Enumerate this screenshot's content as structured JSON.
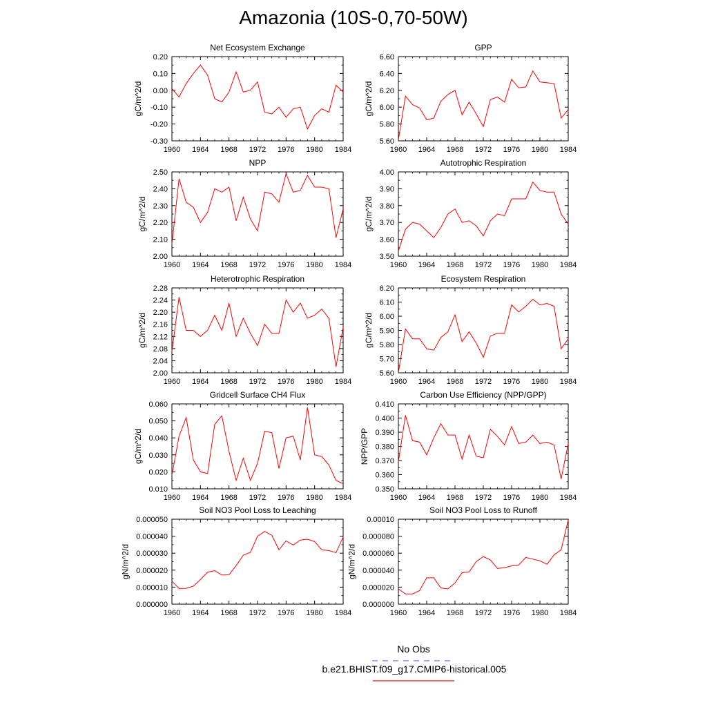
{
  "title": "Amazonia (10S-0,70-50W)",
  "legend": {
    "obs_label": "No Obs",
    "obs_color": "#6b6bd6",
    "run_label": "b.e21.BHIST.f09_g17.CMIP6-historical.005",
    "run_color": "#ff0000"
  },
  "line_color": "#ff0000",
  "chart_data": [
    {
      "type": "line",
      "title": "Net Ecosystem Exchange",
      "ylabel": "gC/m^2/d",
      "ylim": [
        -0.3,
        0.2
      ],
      "yticks": [
        "-0.30",
        "-0.20",
        "-0.10",
        "0.00",
        "0.10",
        "0.20"
      ],
      "xlim": [
        1960,
        1984
      ],
      "xticks": [
        "1960",
        "1964",
        "1968",
        "1972",
        "1976",
        "1980",
        "1984"
      ],
      "x": [
        1960,
        1961,
        1962,
        1963,
        1964,
        1965,
        1966,
        1967,
        1968,
        1969,
        1970,
        1971,
        1972,
        1973,
        1974,
        1975,
        1976,
        1977,
        1978,
        1979,
        1980,
        1981,
        1982,
        1983,
        1984
      ],
      "values": [
        0.01,
        -0.04,
        0.04,
        0.1,
        0.15,
        0.09,
        -0.05,
        -0.07,
        -0.01,
        0.11,
        -0.01,
        0.0,
        0.05,
        -0.13,
        -0.14,
        -0.1,
        -0.16,
        -0.11,
        -0.1,
        -0.23,
        -0.15,
        -0.11,
        -0.13,
        0.03,
        -0.01
      ]
    },
    {
      "type": "line",
      "title": "GPP",
      "ylabel": "gC/m^2/d",
      "ylim": [
        5.6,
        6.6
      ],
      "yticks": [
        "5.60",
        "5.80",
        "6.00",
        "6.20",
        "6.40",
        "6.60"
      ],
      "xlim": [
        1960,
        1984
      ],
      "xticks": [
        "1960",
        "1964",
        "1968",
        "1972",
        "1976",
        "1980",
        "1984"
      ],
      "x": [
        1960,
        1961,
        1962,
        1963,
        1964,
        1965,
        1966,
        1967,
        1968,
        1969,
        1970,
        1971,
        1972,
        1973,
        1974,
        1975,
        1976,
        1977,
        1978,
        1979,
        1980,
        1981,
        1982,
        1983,
        1984
      ],
      "values": [
        5.61,
        6.13,
        6.03,
        5.99,
        5.85,
        5.87,
        6.07,
        6.15,
        6.2,
        5.91,
        6.06,
        5.92,
        5.77,
        6.09,
        6.12,
        6.06,
        6.33,
        6.23,
        6.24,
        6.43,
        6.3,
        6.29,
        6.28,
        5.87,
        5.97
      ]
    },
    {
      "type": "line",
      "title": "NPP",
      "ylabel": "gC/m^2/d",
      "ylim": [
        2.0,
        2.5
      ],
      "yticks": [
        "2.00",
        "2.10",
        "2.20",
        "2.30",
        "2.40",
        "2.50"
      ],
      "xlim": [
        1960,
        1984
      ],
      "xticks": [
        "1960",
        "1964",
        "1968",
        "1972",
        "1976",
        "1980",
        "1984"
      ],
      "x": [
        1960,
        1961,
        1962,
        1963,
        1964,
        1965,
        1966,
        1967,
        1968,
        1969,
        1970,
        1971,
        1972,
        1973,
        1974,
        1975,
        1976,
        1977,
        1978,
        1979,
        1980,
        1981,
        1982,
        1983,
        1984
      ],
      "values": [
        2.07,
        2.46,
        2.32,
        2.29,
        2.2,
        2.26,
        2.4,
        2.38,
        2.41,
        2.21,
        2.35,
        2.22,
        2.15,
        2.38,
        2.37,
        2.32,
        2.49,
        2.38,
        2.39,
        2.48,
        2.41,
        2.41,
        2.4,
        2.11,
        2.28
      ]
    },
    {
      "type": "line",
      "title": "Autotrophic Respiration",
      "ylabel": "gC/m^2/d",
      "ylim": [
        3.5,
        4.0
      ],
      "yticks": [
        "3.50",
        "3.60",
        "3.70",
        "3.80",
        "3.90",
        "4.00"
      ],
      "xlim": [
        1960,
        1984
      ],
      "xticks": [
        "1960",
        "1964",
        "1968",
        "1972",
        "1976",
        "1980",
        "1984"
      ],
      "x": [
        1960,
        1961,
        1962,
        1963,
        1964,
        1965,
        1966,
        1967,
        1968,
        1969,
        1970,
        1971,
        1972,
        1973,
        1974,
        1975,
        1976,
        1977,
        1978,
        1979,
        1980,
        1981,
        1982,
        1983,
        1984
      ],
      "values": [
        3.53,
        3.66,
        3.7,
        3.69,
        3.65,
        3.61,
        3.67,
        3.75,
        3.78,
        3.7,
        3.71,
        3.68,
        3.62,
        3.71,
        3.75,
        3.74,
        3.84,
        3.84,
        3.84,
        3.94,
        3.89,
        3.88,
        3.88,
        3.75,
        3.69
      ]
    },
    {
      "type": "line",
      "title": "Heterotrophic Respiration",
      "ylabel": "gC/m^2/d",
      "ylim": [
        2.0,
        2.28
      ],
      "yticks": [
        "2.00",
        "2.04",
        "2.08",
        "2.12",
        "2.16",
        "2.20",
        "2.24",
        "2.28"
      ],
      "xlim": [
        1960,
        1984
      ],
      "xticks": [
        "1960",
        "1964",
        "1968",
        "1972",
        "1976",
        "1980",
        "1984"
      ],
      "x": [
        1960,
        1961,
        1962,
        1963,
        1964,
        1965,
        1966,
        1967,
        1968,
        1969,
        1970,
        1971,
        1972,
        1973,
        1974,
        1975,
        1976,
        1977,
        1978,
        1979,
        1980,
        1981,
        1982,
        1983,
        1984
      ],
      "values": [
        2.07,
        2.25,
        2.14,
        2.14,
        2.12,
        2.14,
        2.19,
        2.14,
        2.23,
        2.12,
        2.18,
        2.13,
        2.09,
        2.16,
        2.13,
        2.13,
        2.24,
        2.2,
        2.23,
        2.18,
        2.19,
        2.21,
        2.18,
        2.02,
        2.15
      ]
    },
    {
      "type": "line",
      "title": "Ecosystem Respiration",
      "ylabel": "gC/m^2/d",
      "ylim": [
        5.6,
        6.2
      ],
      "yticks": [
        "5.60",
        "5.70",
        "5.80",
        "5.90",
        "6.00",
        "6.10",
        "6.20"
      ],
      "xlim": [
        1960,
        1984
      ],
      "xticks": [
        "1960",
        "1964",
        "1968",
        "1972",
        "1976",
        "1980",
        "1984"
      ],
      "x": [
        1960,
        1961,
        1962,
        1963,
        1964,
        1965,
        1966,
        1967,
        1968,
        1969,
        1970,
        1971,
        1972,
        1973,
        1974,
        1975,
        1976,
        1977,
        1978,
        1979,
        1980,
        1981,
        1982,
        1983,
        1984
      ],
      "values": [
        5.6,
        5.91,
        5.84,
        5.84,
        5.77,
        5.76,
        5.85,
        5.89,
        6.01,
        5.82,
        5.89,
        5.81,
        5.71,
        5.86,
        5.88,
        5.88,
        6.08,
        6.03,
        6.07,
        6.12,
        6.08,
        6.09,
        6.07,
        5.77,
        5.84
      ]
    },
    {
      "type": "line",
      "title": "Gridcell Surface CH4 Flux",
      "ylabel": "gC/m^2/d",
      "ylim": [
        0.01,
        0.06
      ],
      "yticks": [
        "0.010",
        "0.020",
        "0.030",
        "0.040",
        "0.050",
        "0.060"
      ],
      "xlim": [
        1960,
        1984
      ],
      "xticks": [
        "1960",
        "1964",
        "1968",
        "1972",
        "1976",
        "1980",
        "1984"
      ],
      "x": [
        1960,
        1961,
        1962,
        1963,
        1964,
        1965,
        1966,
        1967,
        1968,
        1969,
        1970,
        1971,
        1972,
        1973,
        1974,
        1975,
        1976,
        1977,
        1978,
        1979,
        1980,
        1981,
        1982,
        1983,
        1984
      ],
      "values": [
        0.018,
        0.041,
        0.052,
        0.027,
        0.02,
        0.019,
        0.048,
        0.053,
        0.032,
        0.015,
        0.028,
        0.015,
        0.025,
        0.044,
        0.043,
        0.022,
        0.04,
        0.041,
        0.027,
        0.058,
        0.03,
        0.029,
        0.024,
        0.015,
        0.013
      ]
    },
    {
      "type": "line",
      "title": "Carbon Use Efficiency (NPP/GPP)",
      "ylabel": "NPP/GPP",
      "ylim": [
        0.35,
        0.41
      ],
      "yticks": [
        "0.350",
        "0.360",
        "0.370",
        "0.380",
        "0.390",
        "0.400",
        "0.410"
      ],
      "xlim": [
        1960,
        1984
      ],
      "xticks": [
        "1960",
        "1964",
        "1968",
        "1972",
        "1976",
        "1980",
        "1984"
      ],
      "x": [
        1960,
        1961,
        1962,
        1963,
        1964,
        1965,
        1966,
        1967,
        1968,
        1969,
        1970,
        1971,
        1972,
        1973,
        1974,
        1975,
        1976,
        1977,
        1978,
        1979,
        1980,
        1981,
        1982,
        1983,
        1984
      ],
      "values": [
        0.369,
        0.402,
        0.384,
        0.383,
        0.374,
        0.386,
        0.396,
        0.388,
        0.388,
        0.371,
        0.388,
        0.373,
        0.372,
        0.392,
        0.387,
        0.381,
        0.394,
        0.382,
        0.383,
        0.388,
        0.382,
        0.383,
        0.381,
        0.357,
        0.382
      ]
    },
    {
      "type": "line",
      "title": "Soil NO3 Pool Loss to Leaching",
      "ylabel": "gN/m^2/d",
      "ylim": [
        0.0,
        5e-05
      ],
      "yticks": [
        "0.000000",
        "0.000010",
        "0.000020",
        "0.000030",
        "0.000040",
        "0.000050"
      ],
      "xlim": [
        1960,
        1984
      ],
      "xticks": [
        "1960",
        "1964",
        "1968",
        "1972",
        "1976",
        "1980",
        "1984"
      ],
      "x": [
        1960,
        1961,
        1962,
        1963,
        1964,
        1965,
        1966,
        1967,
        1968,
        1969,
        1970,
        1971,
        1972,
        1973,
        1974,
        1975,
        1976,
        1977,
        1978,
        1979,
        1980,
        1981,
        1982,
        1983,
        1984
      ],
      "values": [
        1.35e-05,
        9.2e-06,
        9.3e-06,
        1.06e-05,
        1.45e-05,
        1.88e-05,
        1.97e-05,
        1.71e-05,
        1.73e-05,
        2.27e-05,
        2.88e-05,
        3.05e-05,
        4e-05,
        4.28e-05,
        4.05e-05,
        3.2e-05,
        3.72e-05,
        3.48e-05,
        3.77e-05,
        3.82e-05,
        3.68e-05,
        3.2e-05,
        3.15e-05,
        3.03e-05,
        3.95e-05
      ]
    },
    {
      "type": "line",
      "title": "Soil NO3 Pool Loss to Runoff",
      "ylabel": "gN/m^2/d",
      "ylim": [
        0.0,
        0.0001
      ],
      "yticks": [
        "0.000000",
        "0.000020",
        "0.000040",
        "0.000060",
        "0.000080",
        "0.00010"
      ],
      "xlim": [
        1960,
        1984
      ],
      "xticks": [
        "1960",
        "1964",
        "1968",
        "1972",
        "1976",
        "1980",
        "1984"
      ],
      "x": [
        1960,
        1961,
        1962,
        1963,
        1964,
        1965,
        1966,
        1967,
        1968,
        1969,
        1970,
        1971,
        1972,
        1973,
        1974,
        1975,
        1976,
        1977,
        1978,
        1979,
        1980,
        1981,
        1982,
        1983,
        1984
      ],
      "values": [
        1.8e-05,
        1.2e-05,
        1.2e-05,
        1.6e-05,
        3.1e-05,
        3.1e-05,
        1.9e-05,
        1.8e-05,
        2.5e-05,
        3.7e-05,
        3.8e-05,
        5e-05,
        5.6e-05,
        5.2e-05,
        4.2e-05,
        4.3e-05,
        4.5e-05,
        4.6e-05,
        5.5e-05,
        5.3e-05,
        5.1e-05,
        4.7e-05,
        5.8e-05,
        6.4e-05,
        9.9e-05
      ]
    }
  ]
}
